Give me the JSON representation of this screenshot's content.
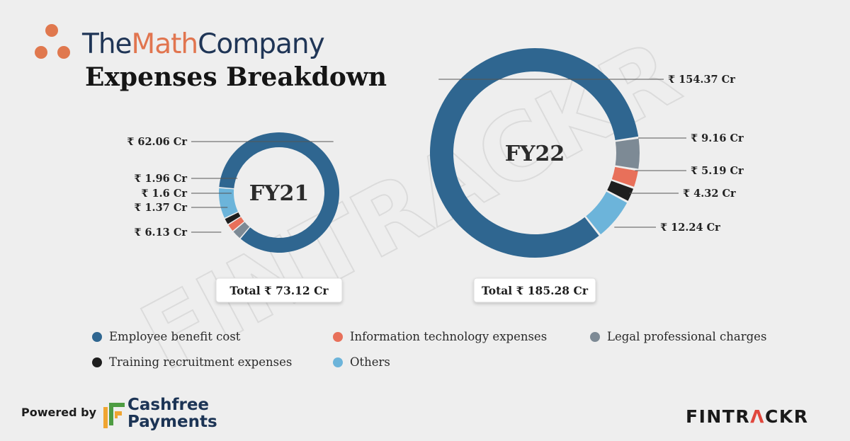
{
  "brand": {
    "part1": "The",
    "part2": "Math",
    "part3": "Company"
  },
  "title": "Expenses Breakdown",
  "watermark": "FINTRACKR",
  "colors": {
    "employee": "#2f6690",
    "legal": "#7d8a95",
    "it": "#e8705a",
    "training": "#1e1e1e",
    "others": "#6cb4da"
  },
  "chart_data": [
    {
      "type": "donut",
      "title": "FY21",
      "total_label": "Total ₹ 73.12 Cr",
      "series": [
        {
          "name": "Employee benefit cost",
          "value": 62.06,
          "label": "₹ 62.06 Cr"
        },
        {
          "name": "Legal professional charges",
          "value": 1.96,
          "label": "₹ 1.96 Cr"
        },
        {
          "name": "Information technology expenses",
          "value": 1.6,
          "label": "₹ 1.6 Cr"
        },
        {
          "name": "Training recruitment expenses",
          "value": 1.37,
          "label": "₹ 1.37 Cr"
        },
        {
          "name": "Others",
          "value": 6.13,
          "label": "₹ 6.13 Cr"
        }
      ]
    },
    {
      "type": "donut",
      "title": "FY22",
      "total_label": "Total ₹ 185.28 Cr",
      "series": [
        {
          "name": "Employee benefit cost",
          "value": 154.37,
          "label": "₹ 154.37 Cr"
        },
        {
          "name": "Legal professional charges",
          "value": 9.16,
          "label": "₹ 9.16 Cr"
        },
        {
          "name": "Information technology expenses",
          "value": 5.19,
          "label": "₹ 5.19 Cr"
        },
        {
          "name": "Training recruitment expenses",
          "value": 4.32,
          "label": "₹ 4.32 Cr"
        },
        {
          "name": "Others",
          "value": 12.24,
          "label": "₹ 12.24 Cr"
        }
      ]
    }
  ],
  "legend": [
    {
      "label": "Employee benefit cost",
      "color_key": "employee"
    },
    {
      "label": "Information technology expenses",
      "color_key": "it"
    },
    {
      "label": "Legal professional charges",
      "color_key": "legal"
    },
    {
      "label": "Training recruitment expenses",
      "color_key": "training"
    },
    {
      "label": "Others",
      "color_key": "others"
    }
  ],
  "footer": {
    "powered_by": "Powered by",
    "cashfree_line1": "Cashfree",
    "cashfree_line2": "Payments",
    "fintrackr_part1": "FINTR",
    "fintrackr_part2": "Λ",
    "fintrackr_part3": "CKR"
  }
}
